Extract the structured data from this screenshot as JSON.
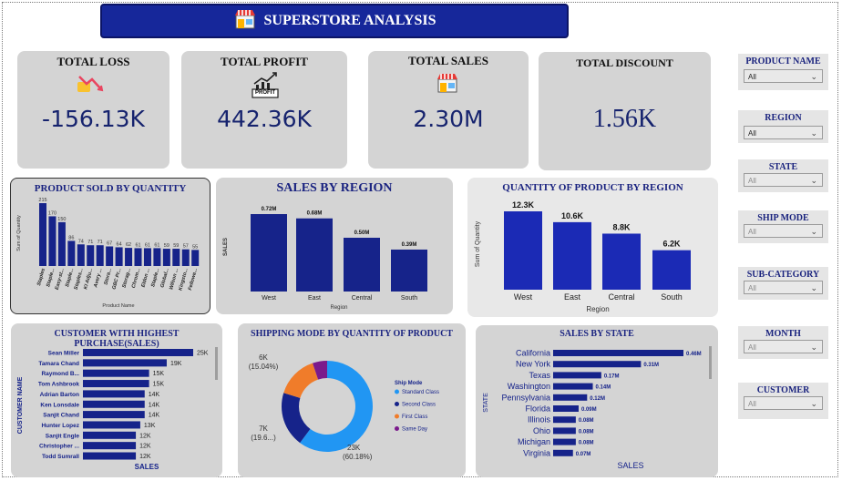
{
  "header": {
    "title": "SUPERSTORE ANALYSIS"
  },
  "kpis": {
    "loss": {
      "title": "TOTAL LOSS",
      "value": "-156.13K"
    },
    "profit": {
      "title": "TOTAL PROFIT",
      "value": "442.36K",
      "icon_text": "PROFIT"
    },
    "sales": {
      "title": "TOTAL SALES",
      "value": "2.30M"
    },
    "discount": {
      "title": "TOTAL DISCOUNT",
      "value": "1.56K"
    }
  },
  "slicers": [
    {
      "label": "PRODUCT NAME",
      "value": "All"
    },
    {
      "label": "REGION",
      "value": "All"
    },
    {
      "label": "STATE",
      "value": "All"
    },
    {
      "label": "SHIP MODE",
      "value": "All"
    },
    {
      "label": "SUB-CATEGORY",
      "value": "All"
    },
    {
      "label": "MONTH",
      "value": "All"
    },
    {
      "label": "CUSTOMER",
      "value": "All"
    }
  ],
  "colors": {
    "bar": "#16238a",
    "bar_light": "#1b2ab5",
    "standard": "#2196f3",
    "second": "#16238a",
    "first": "#f07c2a",
    "same": "#7b1a8c"
  },
  "chart_data": [
    {
      "id": "product_qty",
      "type": "bar",
      "title": "PRODUCT SOLD BY QUANTITY",
      "xlabel": "Product Name",
      "ylabel": "Sum of Quantity",
      "categories": [
        "Staples",
        "Staple...",
        "Easy-st...",
        "Staple...",
        "Staples...",
        "KI Adju...",
        "Avery ...",
        "Stora...",
        "GBC Pr...",
        "Storag...",
        "Chrom...",
        "Eldon ...",
        "Staple...",
        "Global...",
        "Wilson ...",
        "Kingsto...",
        "Fellowe..."
      ],
      "values": [
        215,
        170,
        150,
        86,
        74,
        71,
        71,
        67,
        64,
        62,
        61,
        61,
        61,
        59,
        59,
        57,
        55
      ],
      "ylim": [
        0,
        230
      ]
    },
    {
      "id": "sales_region",
      "type": "bar",
      "title": "SALES BY REGION",
      "xlabel": "Region",
      "ylabel": "SALES",
      "categories": [
        "West",
        "East",
        "Central",
        "South"
      ],
      "values": [
        0.72,
        0.68,
        0.5,
        0.39
      ],
      "labels": [
        "0.72M",
        "0.68M",
        "0.50M",
        "0.39M"
      ],
      "ylim": [
        0,
        0.8
      ]
    },
    {
      "id": "qty_region",
      "type": "bar",
      "title": "QUANTITY OF PRODUCT BY REGION",
      "xlabel": "Region",
      "ylabel": "Sum of Quantity",
      "categories": [
        "West",
        "East",
        "Central",
        "South"
      ],
      "values": [
        12.3,
        10.6,
        8.8,
        6.2
      ],
      "labels": [
        "12.3K",
        "10.6K",
        "8.8K",
        "6.2K"
      ],
      "ylim": [
        0,
        13
      ]
    },
    {
      "id": "customers",
      "type": "bar",
      "title": "CUSTOMER WITH HIGHEST PURCHASE(SALES)",
      "xlabel": "SALES",
      "ylabel": "CUSTOMER NAME",
      "categories": [
        "Sean Miller",
        "Tamara Chand",
        "Raymond B...",
        "Tom Ashbrook",
        "Adrian Barton",
        "Ken Lonsdale",
        "Sanjit Chand",
        "Hunter Lopez",
        "Sanjit Engle",
        "Christopher ...",
        "Todd Sumrall"
      ],
      "values": [
        25,
        19,
        15,
        15,
        14,
        14,
        14,
        13,
        12,
        12,
        12
      ],
      "labels": [
        "25K",
        "19K",
        "15K",
        "15K",
        "14K",
        "14K",
        "14K",
        "13K",
        "12K",
        "12K",
        "12K"
      ],
      "xlim": [
        0,
        25
      ]
    },
    {
      "id": "ship_mode",
      "type": "pie",
      "title": "SHIPPING MODE BY QUANTITY OF PRODUCT",
      "legend_title": "Ship Mode",
      "categories": [
        "Standard Class",
        "Second Class",
        "First Class",
        "Same Day"
      ],
      "values": [
        60.18,
        19.6,
        15.04,
        5.18
      ],
      "labels": [
        {
          "top": "23K",
          "bottom": "(60.18%)"
        },
        {
          "top": "7K",
          "bottom": "(19.6...)"
        },
        {
          "top": "6K",
          "bottom": "(15.04%)"
        },
        {
          "top": "",
          "bottom": ""
        }
      ]
    },
    {
      "id": "sales_state",
      "type": "bar",
      "title": "SALES BY STATE",
      "xlabel": "SALES",
      "ylabel": "STATE",
      "categories": [
        "California",
        "New York",
        "Texas",
        "Washington",
        "Pennsylvania",
        "Florida",
        "Illinois",
        "Ohio",
        "Michigan",
        "Virginia"
      ],
      "values": [
        0.46,
        0.31,
        0.17,
        0.14,
        0.12,
        0.09,
        0.08,
        0.08,
        0.08,
        0.07
      ],
      "labels": [
        "0.46M",
        "0.31M",
        "0.17M",
        "0.14M",
        "0.12M",
        "0.09M",
        "0.08M",
        "0.08M",
        "0.08M",
        "0.07M"
      ],
      "xlim": [
        0,
        0.46
      ]
    }
  ]
}
